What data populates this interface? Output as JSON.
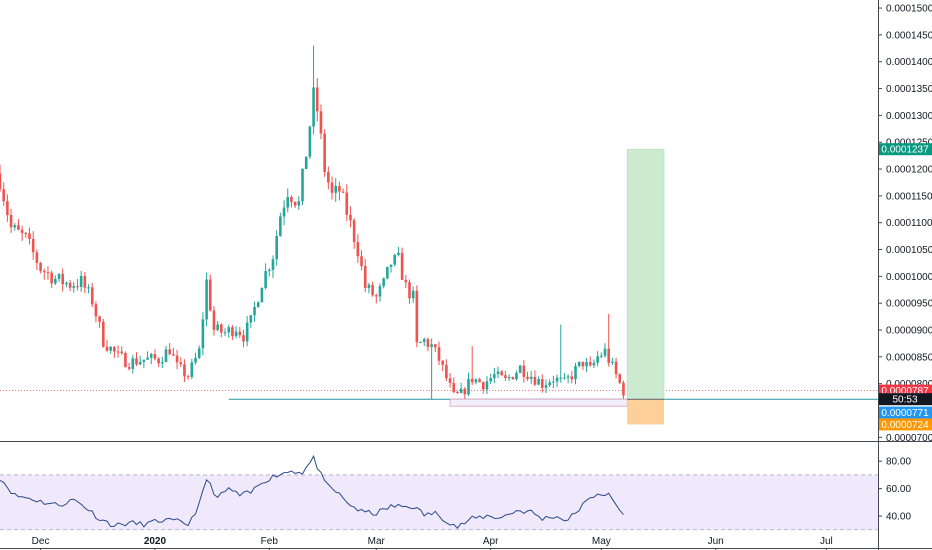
{
  "chart_data": {
    "type": "candlestick",
    "title": "",
    "xlabel": "",
    "ylabel": "",
    "x_range": [
      "2019-11-20",
      "2020-07-15"
    ],
    "ylim": [
      6.95e-05,
      0.0001515
    ],
    "y_ticks": [
      "0.0000700",
      "0.0000750",
      "0.0000800",
      "0.0000850",
      "0.0000900",
      "0.0000950",
      "0.0001000",
      "0.0001050",
      "0.0001100",
      "0.0001150",
      "0.0001200",
      "0.0001250",
      "0.0001300",
      "0.0001350",
      "0.0001400",
      "0.0001450",
      "0.0001500"
    ],
    "x_ticks": [
      {
        "label": "Dec",
        "date": "2019-12-01",
        "bold": false
      },
      {
        "label": "2020",
        "date": "2020-01-01",
        "bold": true
      },
      {
        "label": "Feb",
        "date": "2020-02-01",
        "bold": false
      },
      {
        "label": "Mar",
        "date": "2020-03-01",
        "bold": false
      },
      {
        "label": "Apr",
        "date": "2020-04-01",
        "bold": false
      },
      {
        "label": "May",
        "date": "2020-05-01",
        "bold": false
      },
      {
        "label": "Jun",
        "date": "2020-06-01",
        "bold": false
      },
      {
        "label": "Jul",
        "date": "2020-07-01",
        "bold": false
      }
    ],
    "close_anchors": [
      [
        "2019-11-20",
        0.000118
      ],
      [
        "2019-11-23",
        0.000109
      ],
      [
        "2019-11-27",
        0.000107
      ],
      [
        "2019-12-01",
        0.0001015
      ],
      [
        "2019-12-05",
        9.95e-05
      ],
      [
        "2019-12-09",
        9.85e-05
      ],
      [
        "2019-12-12",
        9.9e-05
      ],
      [
        "2019-12-15",
        9.55e-05
      ],
      [
        "2019-12-18",
        8.8e-05
      ],
      [
        "2019-12-22",
        8.5e-05
      ],
      [
        "2019-12-25",
        8.4e-05
      ],
      [
        "2019-12-29",
        8.45e-05
      ],
      [
        "2020-01-02",
        8.45e-05
      ],
      [
        "2020-01-05",
        8.65e-05
      ],
      [
        "2020-01-07",
        8.3e-05
      ],
      [
        "2020-01-10",
        8.15e-05
      ],
      [
        "2020-01-13",
        8.6e-05
      ],
      [
        "2020-01-15",
        9.9e-05
      ],
      [
        "2020-01-17",
        9e-05
      ],
      [
        "2020-01-20",
        8.95e-05
      ],
      [
        "2020-01-23",
        9.05e-05
      ],
      [
        "2020-01-25",
        8.9e-05
      ],
      [
        "2020-01-27",
        9.15e-05
      ],
      [
        "2020-01-30",
        9.9e-05
      ],
      [
        "2020-02-02",
        0.000104
      ],
      [
        "2020-02-04",
        0.0001115
      ],
      [
        "2020-02-06",
        0.000116
      ],
      [
        "2020-02-09",
        0.0001135
      ],
      [
        "2020-02-11",
        0.000123
      ],
      [
        "2020-02-13",
        0.0001335
      ],
      [
        "2020-02-14",
        0.000131
      ],
      [
        "2020-02-16",
        0.00012
      ],
      [
        "2020-02-18",
        0.000115
      ],
      [
        "2020-02-20",
        0.000116
      ],
      [
        "2020-02-22",
        0.000112
      ],
      [
        "2020-02-25",
        0.000105
      ],
      [
        "2020-02-27",
        9.8e-05
      ],
      [
        "2020-03-01",
        9.6e-05
      ],
      [
        "2020-03-03",
        9.85e-05
      ],
      [
        "2020-03-05",
        0.0001025
      ],
      [
        "2020-03-07",
        0.000103
      ],
      [
        "2020-03-09",
        9.8e-05
      ],
      [
        "2020-03-11",
        9.6e-05
      ],
      [
        "2020-03-12",
        8.7e-05
      ],
      [
        "2020-03-14",
        8.8e-05
      ],
      [
        "2020-03-16",
        8.7e-05
      ],
      [
        "2020-03-18",
        8.45e-05
      ],
      [
        "2020-03-20",
        8.1e-05
      ],
      [
        "2020-03-22",
        7.75e-05
      ],
      [
        "2020-03-24",
        7.8e-05
      ],
      [
        "2020-03-27",
        8.1e-05
      ],
      [
        "2020-03-30",
        8e-05
      ],
      [
        "2020-04-02",
        8.15e-05
      ],
      [
        "2020-04-05",
        8.05e-05
      ],
      [
        "2020-04-09",
        8.3e-05
      ],
      [
        "2020-04-12",
        8.15e-05
      ],
      [
        "2020-04-15",
        8e-05
      ],
      [
        "2020-04-18",
        8.1e-05
      ],
      [
        "2020-04-21",
        8e-05
      ],
      [
        "2020-04-24",
        8.25e-05
      ],
      [
        "2020-04-26",
        8.4e-05
      ],
      [
        "2020-04-28",
        8.25e-05
      ],
      [
        "2020-04-30",
        8.5e-05
      ],
      [
        "2020-05-02",
        8.6e-05
      ],
      [
        "2020-05-04",
        8.3e-05
      ],
      [
        "2020-05-06",
        8e-05
      ],
      [
        "2020-05-07",
        7.87e-05
      ]
    ],
    "rsi_anchors": [
      [
        "2019-11-20",
        68
      ],
      [
        "2019-11-24",
        55
      ],
      [
        "2019-11-28",
        53
      ],
      [
        "2019-12-02",
        50
      ],
      [
        "2019-12-06",
        48
      ],
      [
        "2019-12-10",
        52
      ],
      [
        "2019-12-13",
        47
      ],
      [
        "2019-12-17",
        38
      ],
      [
        "2019-12-21",
        33
      ],
      [
        "2019-12-25",
        35
      ],
      [
        "2019-12-29",
        34
      ],
      [
        "2020-01-03",
        37
      ],
      [
        "2020-01-07",
        36
      ],
      [
        "2020-01-10",
        34
      ],
      [
        "2020-01-13",
        48
      ],
      [
        "2020-01-15",
        67
      ],
      [
        "2020-01-18",
        53
      ],
      [
        "2020-01-21",
        60
      ],
      [
        "2020-01-24",
        55
      ],
      [
        "2020-01-27",
        57
      ],
      [
        "2020-01-30",
        65
      ],
      [
        "2020-02-03",
        70
      ],
      [
        "2020-02-07",
        73
      ],
      [
        "2020-02-10",
        72
      ],
      [
        "2020-02-13",
        82
      ],
      [
        "2020-02-16",
        64
      ],
      [
        "2020-02-19",
        58
      ],
      [
        "2020-02-22",
        50
      ],
      [
        "2020-02-26",
        43
      ],
      [
        "2020-03-01",
        42
      ],
      [
        "2020-03-05",
        47
      ],
      [
        "2020-03-08",
        47
      ],
      [
        "2020-03-11",
        47
      ],
      [
        "2020-03-14",
        41
      ],
      [
        "2020-03-17",
        42
      ],
      [
        "2020-03-20",
        37
      ],
      [
        "2020-03-23",
        32
      ],
      [
        "2020-03-27",
        38
      ],
      [
        "2020-03-31",
        40
      ],
      [
        "2020-04-04",
        39
      ],
      [
        "2020-04-08",
        44
      ],
      [
        "2020-04-12",
        43
      ],
      [
        "2020-04-15",
        38
      ],
      [
        "2020-04-18",
        40
      ],
      [
        "2020-04-22",
        37
      ],
      [
        "2020-04-26",
        48
      ],
      [
        "2020-04-30",
        57
      ],
      [
        "2020-05-03",
        55
      ],
      [
        "2020-05-05",
        48
      ],
      [
        "2020-05-07",
        41
      ]
    ],
    "rsi": {
      "ticks": [
        "40.00",
        "60.00",
        "80.00"
      ],
      "ylim": [
        24,
        86
      ],
      "band": [
        30,
        70
      ],
      "band_color": "#f0e8fb"
    },
    "horizontal_line": {
      "price": 7.71e-05,
      "from": "2020-01-21",
      "color": "#2196a3"
    },
    "dotted_price_line": {
      "price": 7.87e-05,
      "color": "#ef5350"
    },
    "support_box": {
      "from": "2020-03-21",
      "to": "2020-05-08",
      "top": 7.71e-05,
      "bottom": 7.58e-05
    },
    "position": {
      "from": "2020-05-08",
      "to": "2020-05-18",
      "entry": 7.71e-05,
      "target": 0.0001237,
      "stop": 7.24e-05,
      "profit_color": "#cdebd0",
      "loss_color": "#fdd09a"
    },
    "price_badges": [
      {
        "text": "0.0001237",
        "price": 0.0001237,
        "color": "#089981"
      },
      {
        "text": "0.0000787",
        "price": 7.87e-05,
        "color": "#f23645"
      },
      {
        "text": "50:53",
        "price": 7.71e-05,
        "color": "#131722"
      },
      {
        "text": "0.0000771",
        "price": 7.46e-05,
        "color": "#2196f3"
      },
      {
        "text": "0.0000724",
        "price": 7.24e-05,
        "color": "#ff9800"
      }
    ],
    "colors": {
      "up": "#26a69a",
      "down": "#ef5350",
      "rsi_line": "#2a4a8a",
      "axis": "#131722"
    }
  }
}
